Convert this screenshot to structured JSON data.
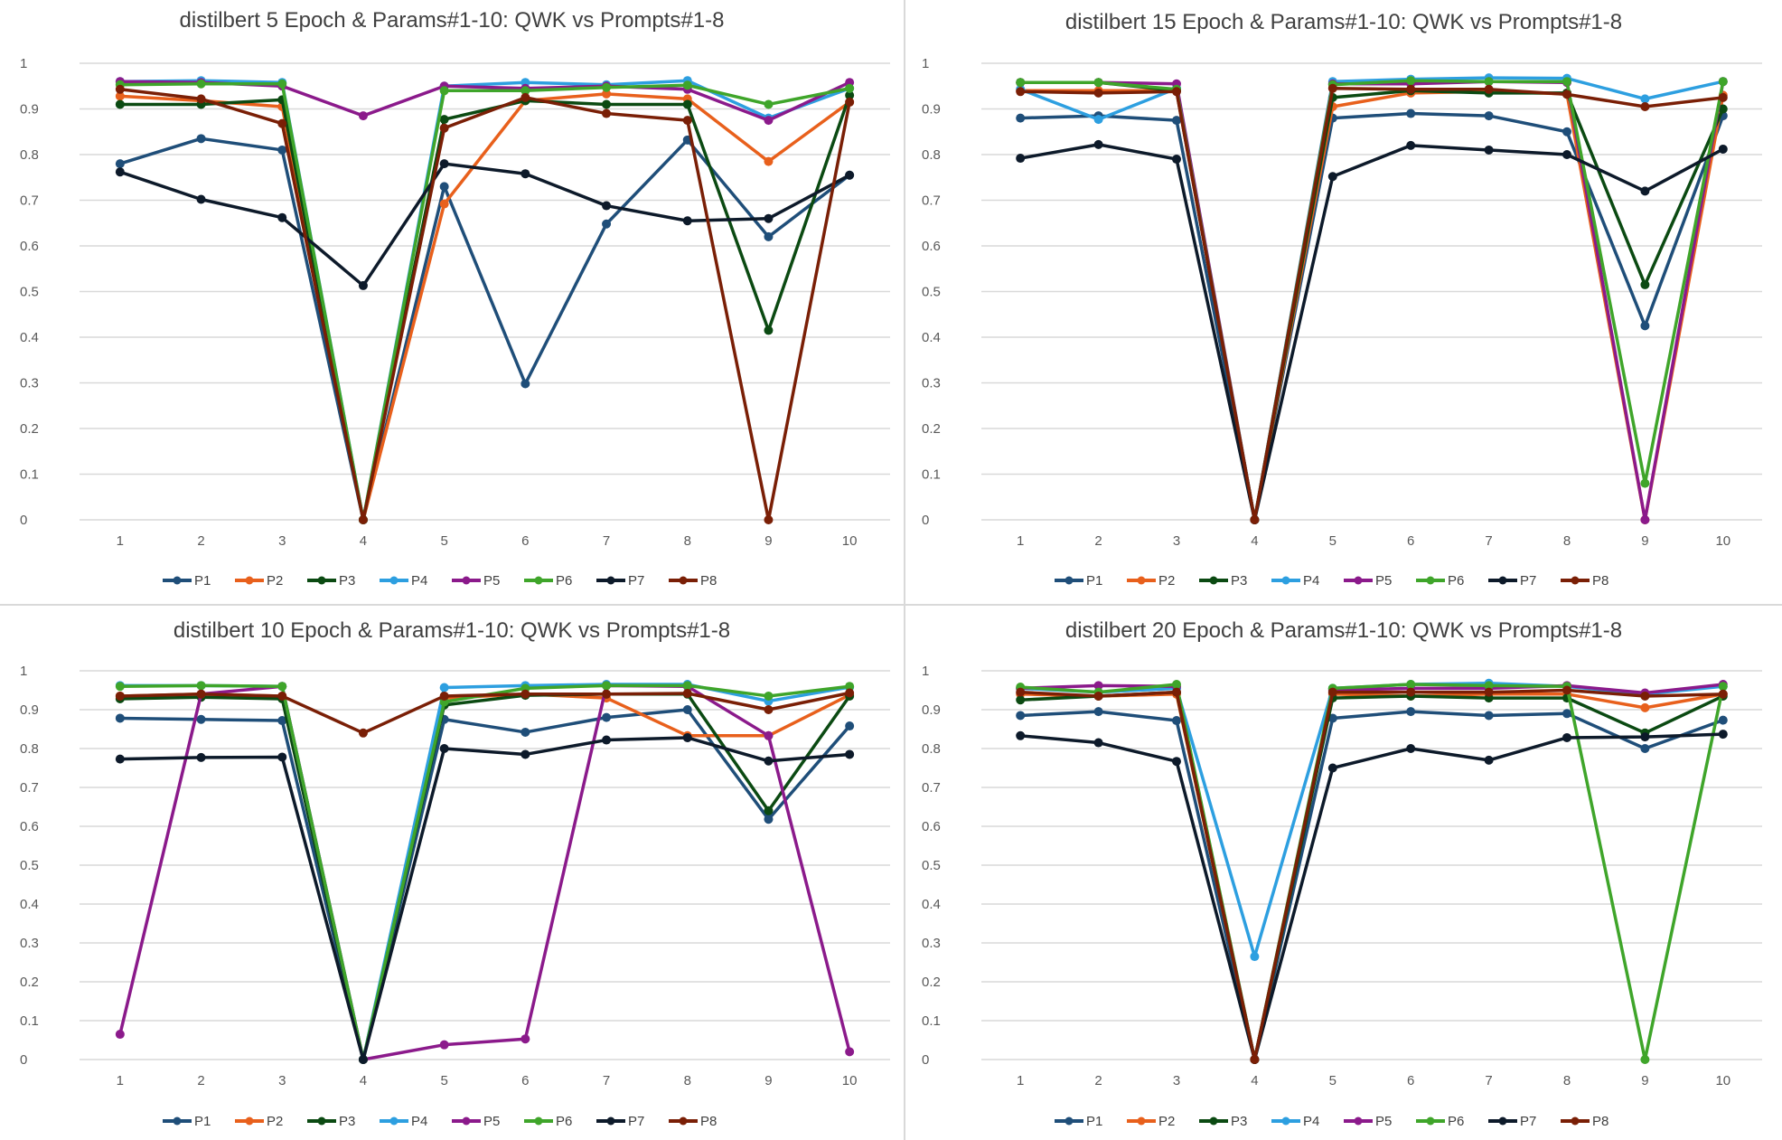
{
  "series_names": [
    "P1",
    "P2",
    "P3",
    "P4",
    "P5",
    "P6",
    "P7",
    "P8"
  ],
  "series_colors": [
    "#1f4e79",
    "#e8601c",
    "#0b4a12",
    "#2d9fe0",
    "#8b1a8b",
    "#3fa52a",
    "#0d1a2a",
    "#7a1f06"
  ],
  "chart_data": [
    {
      "type": "line",
      "title": "distilbert 5 Epoch & Params#1-10: QWK vs Prompts#1-8",
      "xlabel": "",
      "ylabel": "",
      "categories": [
        "1",
        "2",
        "3",
        "4",
        "5",
        "6",
        "7",
        "8",
        "9",
        "10"
      ],
      "yticks": [
        "0",
        "0.1",
        "0.2",
        "0.3",
        "0.4",
        "0.5",
        "0.6",
        "0.7",
        "0.8",
        "0.9",
        "1"
      ],
      "ylim": [
        0,
        1
      ],
      "grid": true,
      "legend": "bottom",
      "series": [
        {
          "name": "P1",
          "values": [
            0.78,
            0.835,
            0.81,
            0.0,
            0.73,
            0.298,
            0.648,
            0.832,
            0.62,
            0.755
          ]
        },
        {
          "name": "P2",
          "values": [
            0.928,
            0.918,
            0.905,
            0.0,
            0.692,
            0.918,
            0.933,
            0.922,
            0.785,
            0.915
          ]
        },
        {
          "name": "P3",
          "values": [
            0.91,
            0.91,
            0.92,
            0.0,
            0.877,
            0.918,
            0.91,
            0.91,
            0.415,
            0.93
          ]
        },
        {
          "name": "P4",
          "values": [
            0.96,
            0.962,
            0.958,
            0.0,
            0.95,
            0.958,
            0.953,
            0.962,
            0.88,
            0.945
          ]
        },
        {
          "name": "P5",
          "values": [
            0.96,
            0.958,
            0.95,
            0.885,
            0.95,
            0.945,
            0.95,
            0.943,
            0.875,
            0.958
          ]
        },
        {
          "name": "P6",
          "values": [
            0.953,
            0.955,
            0.955,
            0.0,
            0.94,
            0.94,
            0.947,
            0.952,
            0.91,
            0.945
          ]
        },
        {
          "name": "P7",
          "values": [
            0.762,
            0.702,
            0.662,
            0.513,
            0.78,
            0.758,
            0.688,
            0.655,
            0.66,
            0.755
          ]
        },
        {
          "name": "P8",
          "values": [
            0.943,
            0.922,
            0.868,
            0.0,
            0.858,
            0.925,
            0.89,
            0.875,
            0.0,
            0.915
          ]
        }
      ]
    },
    {
      "type": "line",
      "title": "distilbert 15 Epoch & Params#1-10: QWK vs Prompts#1-8",
      "xlabel": "",
      "ylabel": "",
      "categories": [
        "1",
        "2",
        "3",
        "4",
        "5",
        "6",
        "7",
        "8",
        "9",
        "10"
      ],
      "yticks": [
        "0",
        "0.1",
        "0.2",
        "0.3",
        "0.4",
        "0.5",
        "0.6",
        "0.7",
        "0.8",
        "0.9",
        "1"
      ],
      "ylim": [
        0,
        1
      ],
      "grid": true,
      "legend": "bottom",
      "series": [
        {
          "name": "P1",
          "values": [
            0.88,
            0.885,
            0.875,
            0.0,
            0.88,
            0.89,
            0.885,
            0.85,
            0.425,
            0.885
          ]
        },
        {
          "name": "P2",
          "values": [
            0.94,
            0.94,
            0.94,
            0.0,
            0.905,
            0.935,
            0.938,
            0.933,
            0.0,
            0.93
          ]
        },
        {
          "name": "P3",
          "values": [
            0.958,
            0.958,
            0.94,
            0.0,
            0.925,
            0.94,
            0.935,
            0.935,
            0.515,
            0.9
          ]
        },
        {
          "name": "P4",
          "values": [
            0.943,
            0.877,
            0.945,
            0.0,
            0.96,
            0.965,
            0.968,
            0.967,
            0.922,
            0.96
          ]
        },
        {
          "name": "P5",
          "values": [
            0.958,
            0.958,
            0.955,
            0.0,
            0.955,
            0.955,
            0.96,
            0.958,
            0.0,
            0.96
          ]
        },
        {
          "name": "P6",
          "values": [
            0.958,
            0.958,
            0.943,
            0.0,
            0.953,
            0.962,
            0.96,
            0.96,
            0.08,
            0.96
          ]
        },
        {
          "name": "P7",
          "values": [
            0.792,
            0.822,
            0.79,
            0.0,
            0.752,
            0.82,
            0.81,
            0.8,
            0.72,
            0.812
          ]
        },
        {
          "name": "P8",
          "values": [
            0.938,
            0.935,
            0.938,
            0.0,
            0.945,
            0.943,
            0.943,
            0.932,
            0.905,
            0.925
          ]
        }
      ]
    },
    {
      "type": "line",
      "title": "distilbert 10 Epoch & Params#1-10: QWK vs Prompts#1-8",
      "xlabel": "",
      "ylabel": "",
      "categories": [
        "1",
        "2",
        "3",
        "4",
        "5",
        "6",
        "7",
        "8",
        "9",
        "10"
      ],
      "yticks": [
        "0",
        "0.1",
        "0.2",
        "0.3",
        "0.4",
        "0.5",
        "0.6",
        "0.7",
        "0.8",
        "0.9",
        "1"
      ],
      "ylim": [
        0,
        1
      ],
      "grid": true,
      "legend": "bottom",
      "series": [
        {
          "name": "P1",
          "values": [
            0.878,
            0.875,
            0.872,
            0.0,
            0.875,
            0.842,
            0.88,
            0.9,
            0.618,
            0.858
          ]
        },
        {
          "name": "P2",
          "values": [
            0.935,
            0.94,
            0.935,
            0.0,
            0.93,
            0.94,
            0.93,
            0.833,
            0.833,
            0.938
          ]
        },
        {
          "name": "P3",
          "values": [
            0.928,
            0.932,
            0.928,
            0.0,
            0.912,
            0.937,
            0.94,
            0.94,
            0.64,
            0.935
          ]
        },
        {
          "name": "P4",
          "values": [
            0.962,
            0.962,
            0.96,
            0.0,
            0.957,
            0.962,
            0.965,
            0.965,
            0.922,
            0.958
          ]
        },
        {
          "name": "P5",
          "values": [
            0.065,
            0.94,
            0.96,
            0.0,
            0.038,
            0.053,
            0.962,
            0.96,
            0.833,
            0.02
          ]
        },
        {
          "name": "P6",
          "values": [
            0.96,
            0.962,
            0.96,
            0.0,
            0.92,
            0.955,
            0.962,
            0.962,
            0.935,
            0.96
          ]
        },
        {
          "name": "P7",
          "values": [
            0.773,
            0.777,
            0.778,
            0.0,
            0.8,
            0.785,
            0.822,
            0.828,
            0.768,
            0.785
          ]
        },
        {
          "name": "P8",
          "values": [
            0.935,
            0.94,
            0.935,
            0.84,
            0.935,
            0.94,
            0.94,
            0.942,
            0.9,
            0.943
          ]
        }
      ]
    },
    {
      "type": "line",
      "title": "distilbert 20 Epoch & Params#1-10: QWK vs Prompts#1-8",
      "xlabel": "",
      "ylabel": "",
      "categories": [
        "1",
        "2",
        "3",
        "4",
        "5",
        "6",
        "7",
        "8",
        "9",
        "10"
      ],
      "yticks": [
        "0",
        "0.1",
        "0.2",
        "0.3",
        "0.4",
        "0.5",
        "0.6",
        "0.7",
        "0.8",
        "0.9",
        "1"
      ],
      "ylim": [
        0,
        1
      ],
      "grid": true,
      "legend": "bottom",
      "series": [
        {
          "name": "P1",
          "values": [
            0.885,
            0.895,
            0.872,
            0.0,
            0.878,
            0.895,
            0.885,
            0.89,
            0.8,
            0.873
          ]
        },
        {
          "name": "P2",
          "values": [
            0.94,
            0.935,
            0.94,
            0.0,
            0.94,
            0.935,
            0.94,
            0.94,
            0.905,
            0.94
          ]
        },
        {
          "name": "P3",
          "values": [
            0.925,
            0.935,
            0.945,
            0.0,
            0.93,
            0.935,
            0.93,
            0.93,
            0.84,
            0.935
          ]
        },
        {
          "name": "P4",
          "values": [
            0.955,
            0.945,
            0.955,
            0.265,
            0.955,
            0.965,
            0.968,
            0.96,
            0.94,
            0.96
          ]
        },
        {
          "name": "P5",
          "values": [
            0.955,
            0.962,
            0.96,
            0.0,
            0.95,
            0.955,
            0.955,
            0.962,
            0.943,
            0.965
          ]
        },
        {
          "name": "P6",
          "values": [
            0.958,
            0.945,
            0.965,
            0.0,
            0.955,
            0.965,
            0.962,
            0.96,
            0.0,
            0.96
          ]
        },
        {
          "name": "P7",
          "values": [
            0.833,
            0.815,
            0.767,
            0.0,
            0.75,
            0.8,
            0.77,
            0.828,
            0.83,
            0.837
          ]
        },
        {
          "name": "P8",
          "values": [
            0.945,
            0.935,
            0.945,
            0.0,
            0.945,
            0.945,
            0.945,
            0.95,
            0.935,
            0.94
          ]
        }
      ]
    }
  ]
}
